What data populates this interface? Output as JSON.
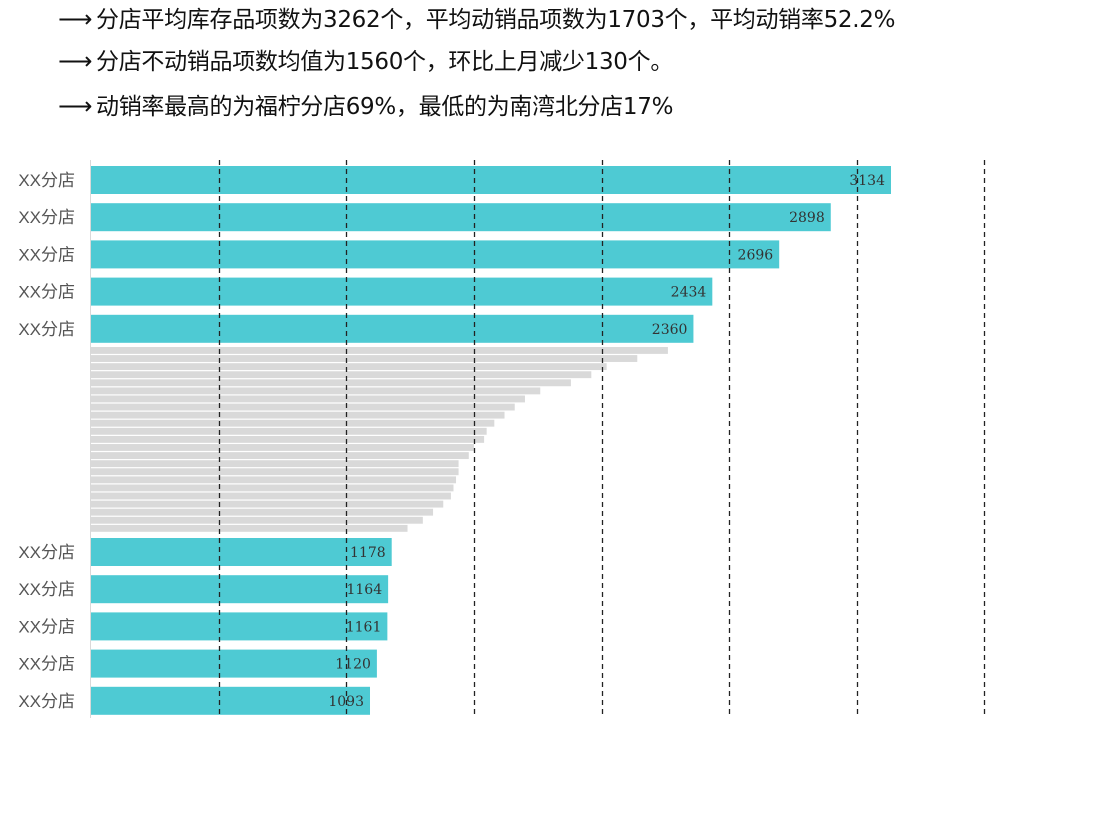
{
  "bullets": [
    {
      "arrow": "⟶",
      "text": "分店平均库存品项数为3262个，平均动销品项数为1703个，平均动销率52.2%"
    },
    {
      "arrow": "⟶",
      "text": "分店不动销品项数均值为1560个，环比上月减少130个。"
    },
    {
      "arrow": "⟶",
      "text": "动销率最高的为福柠分店69%，最低的为南湾北分店17%"
    }
  ],
  "chart_data": {
    "type": "bar",
    "orientation": "horizontal",
    "title": "",
    "xlabel": "",
    "ylabel": "",
    "xlim": [
      0,
      3500
    ],
    "grid": true,
    "grid_style": "dashed",
    "colors": {
      "highlight": "#4ecad3",
      "other": "#d9d9d9",
      "grid": "#222222"
    },
    "top": {
      "categories": [
        "XX分店",
        "XX分店",
        "XX分店",
        "XX分店",
        "XX分店"
      ],
      "values": [
        3134,
        2898,
        2696,
        2434,
        2360
      ]
    },
    "middle_unlabeled_values": [
      2260,
      2140,
      2020,
      1960,
      1880,
      1760,
      1700,
      1660,
      1620,
      1580,
      1550,
      1540,
      1500,
      1480,
      1440,
      1440,
      1430,
      1420,
      1410,
      1380,
      1340,
      1300,
      1240
    ],
    "bottom": {
      "categories": [
        "XX分店",
        "XX分店",
        "XX分店",
        "XX分店",
        "XX分店"
      ],
      "values": [
        1178,
        1164,
        1161,
        1120,
        1093
      ]
    }
  }
}
